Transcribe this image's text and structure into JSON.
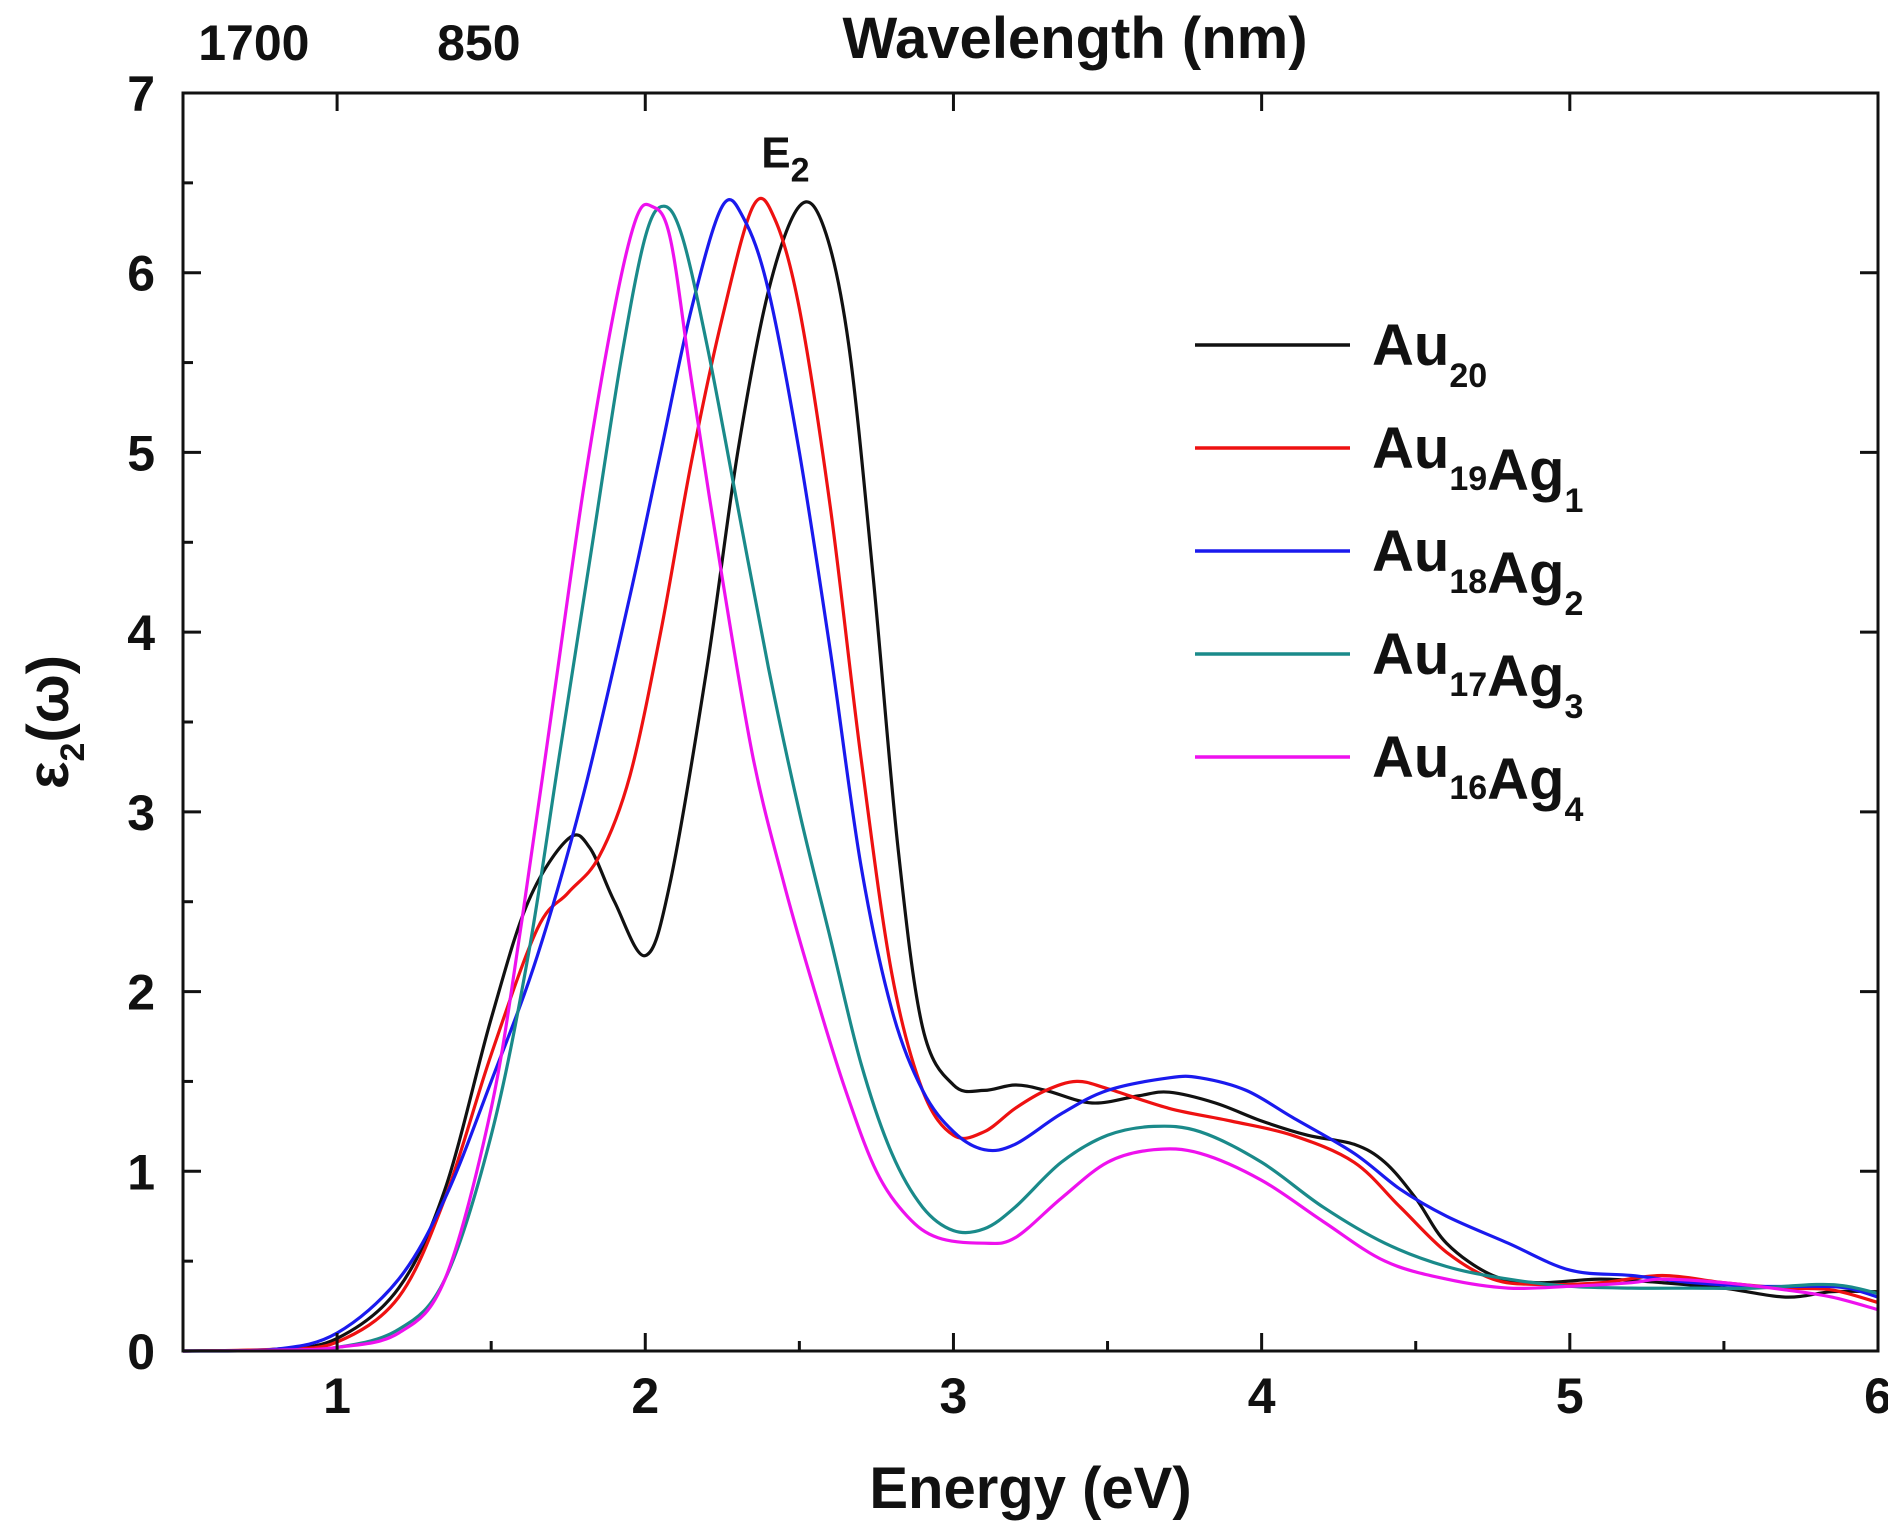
{
  "chart_data": {
    "type": "line",
    "title": "",
    "xlabel": "Energy (eV)",
    "ylabel_main": "ε",
    "ylabel_sub": "2",
    "ylabel_rest": "(ω)",
    "top_axis_title": "Wavelength (nm)",
    "top_ticks": [
      {
        "label": "1700",
        "energy": 0.73
      },
      {
        "label": "850",
        "energy": 1.46
      }
    ],
    "xlim": [
      0.5,
      6
    ],
    "ylim": [
      0,
      7
    ],
    "x_ticks": [
      1,
      2,
      3,
      4,
      5,
      6
    ],
    "x_tick_labels": [
      "1",
      "2",
      "3",
      "4",
      "5",
      "6"
    ],
    "y_ticks": [
      0,
      1,
      2,
      3,
      4,
      5,
      6,
      7
    ],
    "y_tick_labels": [
      "0",
      "1",
      "2",
      "3",
      "4",
      "5",
      "6",
      "7"
    ],
    "annotation": {
      "main": "E",
      "sub": "2",
      "x": 2.5,
      "y": 6.63
    },
    "legend_position": "upper-right",
    "series": [
      {
        "name": "Au20",
        "label_parts": [
          [
            "Au",
            "20"
          ]
        ],
        "color": "#111111",
        "points": [
          [
            0.5,
            0
          ],
          [
            0.8,
            0.01
          ],
          [
            1.0,
            0.07
          ],
          [
            1.2,
            0.35
          ],
          [
            1.35,
            0.9
          ],
          [
            1.5,
            1.85
          ],
          [
            1.62,
            2.5
          ],
          [
            1.75,
            2.85
          ],
          [
            1.82,
            2.8
          ],
          [
            1.9,
            2.5
          ],
          [
            2.0,
            2.2
          ],
          [
            2.08,
            2.6
          ],
          [
            2.2,
            3.8
          ],
          [
            2.3,
            5.0
          ],
          [
            2.4,
            5.9
          ],
          [
            2.5,
            6.37
          ],
          [
            2.58,
            6.25
          ],
          [
            2.66,
            5.6
          ],
          [
            2.74,
            4.3
          ],
          [
            2.82,
            2.8
          ],
          [
            2.9,
            1.8
          ],
          [
            3.0,
            1.48
          ],
          [
            3.1,
            1.45
          ],
          [
            3.2,
            1.48
          ],
          [
            3.3,
            1.45
          ],
          [
            3.45,
            1.38
          ],
          [
            3.6,
            1.42
          ],
          [
            3.7,
            1.44
          ],
          [
            3.85,
            1.38
          ],
          [
            4.0,
            1.28
          ],
          [
            4.15,
            1.2
          ],
          [
            4.3,
            1.15
          ],
          [
            4.4,
            1.05
          ],
          [
            4.5,
            0.85
          ],
          [
            4.6,
            0.6
          ],
          [
            4.75,
            0.42
          ],
          [
            4.9,
            0.38
          ],
          [
            5.1,
            0.4
          ],
          [
            5.3,
            0.38
          ],
          [
            5.5,
            0.35
          ],
          [
            5.7,
            0.3
          ],
          [
            5.85,
            0.33
          ],
          [
            6.0,
            0.33
          ]
        ]
      },
      {
        "name": "Au19Ag1",
        "label_parts": [
          [
            "Au",
            "19"
          ],
          [
            "Ag",
            "1"
          ]
        ],
        "color": "#ee1111",
        "points": [
          [
            0.5,
            0
          ],
          [
            0.8,
            0.01
          ],
          [
            1.0,
            0.05
          ],
          [
            1.2,
            0.3
          ],
          [
            1.35,
            0.85
          ],
          [
            1.5,
            1.65
          ],
          [
            1.65,
            2.35
          ],
          [
            1.75,
            2.55
          ],
          [
            1.85,
            2.75
          ],
          [
            1.95,
            3.2
          ],
          [
            2.05,
            4.0
          ],
          [
            2.15,
            4.95
          ],
          [
            2.25,
            5.75
          ],
          [
            2.35,
            6.37
          ],
          [
            2.42,
            6.3
          ],
          [
            2.5,
            5.8
          ],
          [
            2.6,
            4.7
          ],
          [
            2.7,
            3.3
          ],
          [
            2.8,
            2.1
          ],
          [
            2.9,
            1.45
          ],
          [
            3.0,
            1.2
          ],
          [
            3.1,
            1.22
          ],
          [
            3.2,
            1.35
          ],
          [
            3.3,
            1.45
          ],
          [
            3.4,
            1.5
          ],
          [
            3.5,
            1.46
          ],
          [
            3.7,
            1.35
          ],
          [
            3.9,
            1.28
          ],
          [
            4.1,
            1.2
          ],
          [
            4.3,
            1.05
          ],
          [
            4.45,
            0.8
          ],
          [
            4.6,
            0.55
          ],
          [
            4.75,
            0.4
          ],
          [
            4.9,
            0.37
          ],
          [
            5.1,
            0.38
          ],
          [
            5.3,
            0.42
          ],
          [
            5.5,
            0.38
          ],
          [
            5.7,
            0.35
          ],
          [
            5.85,
            0.34
          ],
          [
            6.0,
            0.27
          ]
        ]
      },
      {
        "name": "Au18Ag2",
        "label_parts": [
          [
            "Au",
            "18"
          ],
          [
            "Ag",
            "2"
          ]
        ],
        "color": "#1a1aee",
        "points": [
          [
            0.5,
            0
          ],
          [
            0.8,
            0.01
          ],
          [
            1.0,
            0.1
          ],
          [
            1.2,
            0.4
          ],
          [
            1.35,
            0.85
          ],
          [
            1.5,
            1.5
          ],
          [
            1.65,
            2.2
          ],
          [
            1.8,
            3.1
          ],
          [
            1.95,
            4.2
          ],
          [
            2.05,
            5.0
          ],
          [
            2.15,
            5.8
          ],
          [
            2.25,
            6.37
          ],
          [
            2.32,
            6.3
          ],
          [
            2.4,
            5.9
          ],
          [
            2.5,
            5.0
          ],
          [
            2.6,
            3.9
          ],
          [
            2.7,
            2.7
          ],
          [
            2.8,
            1.9
          ],
          [
            2.9,
            1.45
          ],
          [
            3.0,
            1.22
          ],
          [
            3.1,
            1.12
          ],
          [
            3.2,
            1.15
          ],
          [
            3.35,
            1.32
          ],
          [
            3.5,
            1.45
          ],
          [
            3.7,
            1.52
          ],
          [
            3.8,
            1.52
          ],
          [
            3.95,
            1.45
          ],
          [
            4.1,
            1.3
          ],
          [
            4.3,
            1.1
          ],
          [
            4.45,
            0.9
          ],
          [
            4.6,
            0.75
          ],
          [
            4.8,
            0.6
          ],
          [
            5.0,
            0.45
          ],
          [
            5.2,
            0.42
          ],
          [
            5.4,
            0.38
          ],
          [
            5.6,
            0.36
          ],
          [
            5.8,
            0.36
          ],
          [
            5.9,
            0.35
          ],
          [
            6.0,
            0.3
          ]
        ]
      },
      {
        "name": "Au17Ag3",
        "label_parts": [
          [
            "Au",
            "17"
          ],
          [
            "Ag",
            "3"
          ]
        ],
        "color": "#1a8a8a",
        "points": [
          [
            0.5,
            0
          ],
          [
            0.8,
            0.005
          ],
          [
            1.0,
            0.02
          ],
          [
            1.2,
            0.12
          ],
          [
            1.35,
            0.4
          ],
          [
            1.5,
            1.2
          ],
          [
            1.62,
            2.2
          ],
          [
            1.72,
            3.3
          ],
          [
            1.82,
            4.4
          ],
          [
            1.92,
            5.5
          ],
          [
            2.0,
            6.2
          ],
          [
            2.06,
            6.37
          ],
          [
            2.12,
            6.2
          ],
          [
            2.2,
            5.6
          ],
          [
            2.3,
            4.7
          ],
          [
            2.4,
            3.8
          ],
          [
            2.5,
            3.0
          ],
          [
            2.6,
            2.3
          ],
          [
            2.7,
            1.6
          ],
          [
            2.8,
            1.1
          ],
          [
            2.9,
            0.8
          ],
          [
            3.0,
            0.67
          ],
          [
            3.1,
            0.68
          ],
          [
            3.2,
            0.8
          ],
          [
            3.35,
            1.05
          ],
          [
            3.5,
            1.2
          ],
          [
            3.65,
            1.25
          ],
          [
            3.8,
            1.22
          ],
          [
            4.0,
            1.05
          ],
          [
            4.2,
            0.8
          ],
          [
            4.4,
            0.6
          ],
          [
            4.6,
            0.47
          ],
          [
            4.8,
            0.4
          ],
          [
            5.0,
            0.36
          ],
          [
            5.2,
            0.35
          ],
          [
            5.4,
            0.35
          ],
          [
            5.6,
            0.35
          ],
          [
            5.8,
            0.37
          ],
          [
            5.9,
            0.36
          ],
          [
            6.0,
            0.32
          ]
        ]
      },
      {
        "name": "Au16Ag4",
        "label_parts": [
          [
            "Au",
            "16"
          ],
          [
            "Ag",
            "4"
          ]
        ],
        "color": "#ee11ee",
        "points": [
          [
            0.5,
            0
          ],
          [
            0.8,
            0.005
          ],
          [
            1.0,
            0.02
          ],
          [
            1.2,
            0.1
          ],
          [
            1.35,
            0.4
          ],
          [
            1.5,
            1.35
          ],
          [
            1.6,
            2.4
          ],
          [
            1.7,
            3.6
          ],
          [
            1.8,
            4.8
          ],
          [
            1.9,
            5.8
          ],
          [
            1.97,
            6.3
          ],
          [
            2.02,
            6.37
          ],
          [
            2.08,
            6.2
          ],
          [
            2.15,
            5.4
          ],
          [
            2.25,
            4.3
          ],
          [
            2.35,
            3.3
          ],
          [
            2.45,
            2.6
          ],
          [
            2.55,
            2.0
          ],
          [
            2.65,
            1.45
          ],
          [
            2.75,
            1.0
          ],
          [
            2.85,
            0.75
          ],
          [
            2.95,
            0.63
          ],
          [
            3.1,
            0.6
          ],
          [
            3.2,
            0.63
          ],
          [
            3.35,
            0.85
          ],
          [
            3.5,
            1.05
          ],
          [
            3.65,
            1.12
          ],
          [
            3.8,
            1.1
          ],
          [
            4.0,
            0.95
          ],
          [
            4.2,
            0.72
          ],
          [
            4.4,
            0.5
          ],
          [
            4.6,
            0.4
          ],
          [
            4.8,
            0.35
          ],
          [
            5.0,
            0.36
          ],
          [
            5.2,
            0.38
          ],
          [
            5.3,
            0.4
          ],
          [
            5.5,
            0.38
          ],
          [
            5.7,
            0.34
          ],
          [
            5.85,
            0.3
          ],
          [
            6.0,
            0.23
          ]
        ]
      }
    ]
  }
}
